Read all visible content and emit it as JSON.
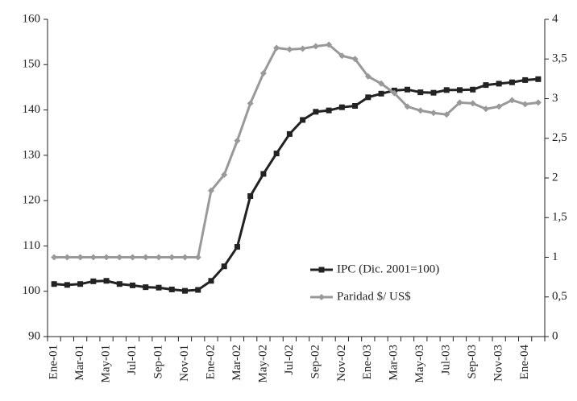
{
  "chart_data": {
    "type": "line",
    "categories": [
      "Ene-01",
      null,
      "Mar-01",
      null,
      "May-01",
      null,
      "Jul-01",
      null,
      "Sep-01",
      null,
      "Nov-01",
      null,
      "Ene-02",
      null,
      "Mar-02",
      null,
      "May-02",
      null,
      "Jul-02",
      null,
      "Sep-02",
      null,
      "Nov-02",
      null,
      "Ene-03",
      null,
      "Mar-03",
      null,
      "May-03",
      null,
      "Jul-03",
      null,
      "Sep-03",
      null,
      "Nov-03",
      null,
      "Ene-04",
      null
    ],
    "series": [
      {
        "name": "IPC (Dic. 2001=100)",
        "color": "#222222",
        "marker": "square",
        "values": [
          101.6,
          101.4,
          101.6,
          102.2,
          102.3,
          101.6,
          101.3,
          100.9,
          100.8,
          100.4,
          100.1,
          100.3,
          102.3,
          105.5,
          109.8,
          121.0,
          125.9,
          130.4,
          134.7,
          137.8,
          139.6,
          139.9,
          140.6,
          140.9,
          142.8,
          143.6,
          144.3,
          144.5,
          143.9,
          143.8,
          144.4,
          144.4,
          144.5,
          145.5,
          145.8,
          146.1,
          146.6,
          146.8
        ]
      },
      {
        "name": "Paridad $/ US$",
        "color": "#999999",
        "marker": "diamond",
        "axis": "y2",
        "values": [
          1,
          1,
          1,
          1,
          1,
          1,
          1,
          1,
          1,
          1,
          1,
          1,
          1.84,
          2.04,
          2.47,
          2.94,
          3.32,
          3.64,
          3.62,
          3.63,
          3.66,
          3.68,
          3.54,
          3.5,
          3.28,
          3.19,
          3.07,
          2.9,
          2.85,
          2.82,
          2.8,
          2.95,
          2.94,
          2.87,
          2.9,
          2.98,
          2.93,
          2.95
        ]
      }
    ],
    "ylim": [
      90,
      160
    ],
    "yticks": [
      90,
      100,
      110,
      120,
      130,
      140,
      150,
      160
    ],
    "y2lim": [
      0,
      4
    ],
    "y2ticks": [
      0,
      {
        "value": 0.5,
        "label": "0,5"
      },
      1,
      {
        "value": 1.5,
        "label": "1,5"
      },
      2,
      {
        "value": 2.5,
        "label": "2,5"
      },
      3,
      {
        "value": 3.5,
        "label": "3,5"
      },
      4
    ],
    "legend": "lower-right",
    "grid": false
  }
}
